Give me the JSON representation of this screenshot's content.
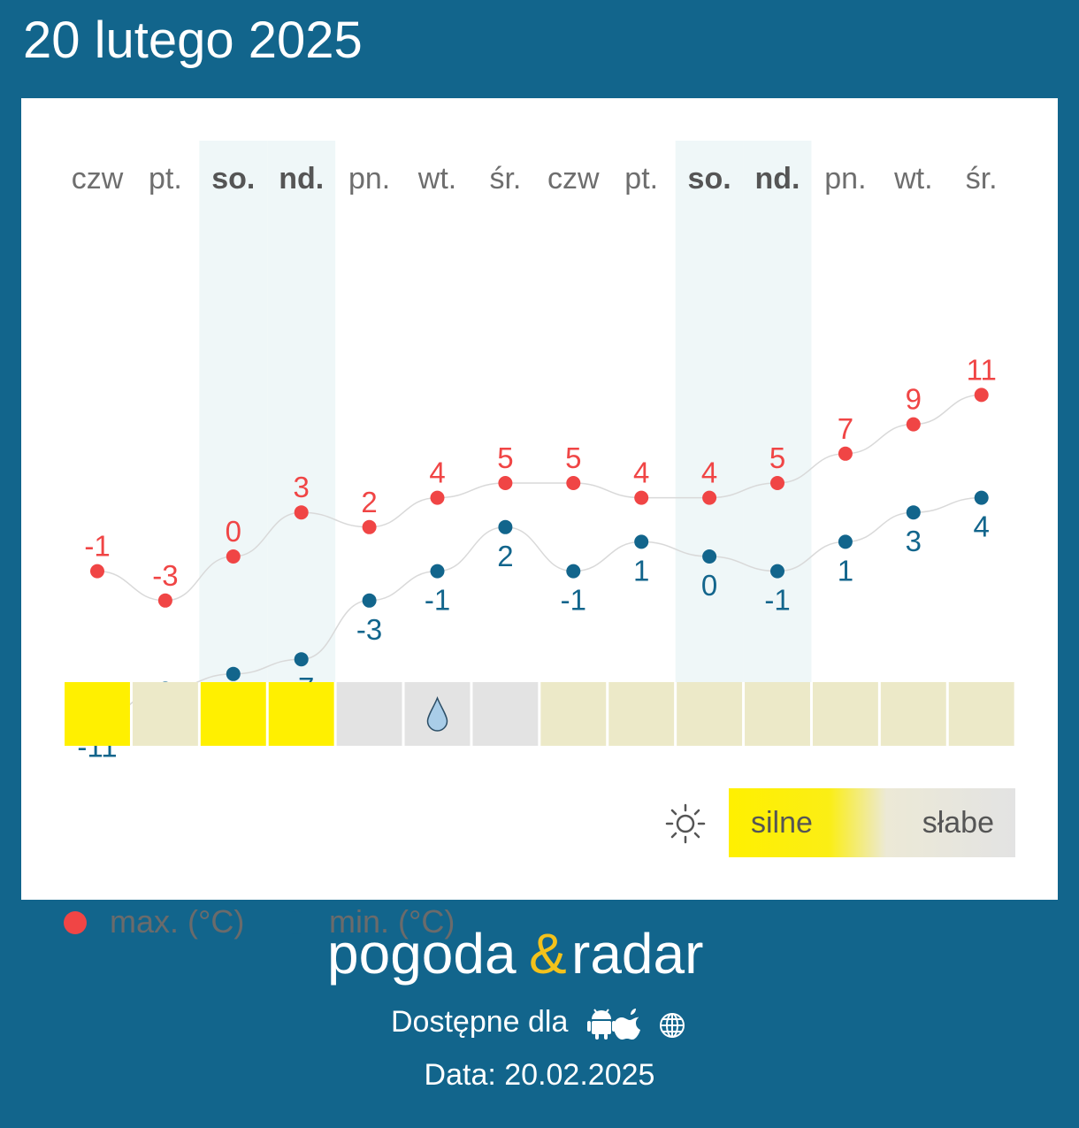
{
  "header": {
    "title": "20 lutego 2025"
  },
  "chart_data": {
    "type": "line",
    "categories": [
      "czw",
      "pt.",
      "so.",
      "nd.",
      "pn.",
      "wt.",
      "śr.",
      "czw",
      "pt.",
      "so.",
      "nd.",
      "pn.",
      "wt.",
      "śr."
    ],
    "weekend": [
      false,
      false,
      true,
      true,
      false,
      false,
      false,
      false,
      false,
      true,
      true,
      false,
      false,
      false
    ],
    "series": [
      {
        "name": "max. (°C)",
        "color": "#f04545",
        "values": [
          -1,
          -3,
          0,
          3,
          2,
          4,
          5,
          5,
          4,
          4,
          5,
          7,
          9,
          11
        ]
      },
      {
        "name": "min. (°C)",
        "color": "#12658c",
        "values": [
          -11,
          -9,
          -8,
          -7,
          -3,
          -1,
          2,
          -1,
          1,
          0,
          -1,
          1,
          3,
          4
        ]
      }
    ],
    "sun_intensity": [
      1,
      0.4,
      1,
      1,
      0,
      0,
      0,
      0.4,
      0.4,
      0.4,
      0.4,
      0.4,
      0.4,
      0.4
    ],
    "precip_icon": [
      "",
      "",
      "",
      "",
      "",
      "raindrop-icon",
      "",
      "",
      "",
      "",
      "",
      "",
      "",
      ""
    ],
    "ylim": [
      -13,
      13
    ],
    "grid": false,
    "legend": "bottom-left"
  },
  "colors": {
    "background": "#12658c",
    "weekend_band": "#eff7f8",
    "sun_strong": "#fff000",
    "sun_medium": "#ece9c8",
    "sun_none": "#e3e3e3"
  },
  "scale": {
    "strong_label": "silne",
    "weak_label": "słabe"
  },
  "brand": {
    "name_left": "pogoda",
    "amp": "&",
    "name_right": "radar"
  },
  "footer": {
    "available_label": "Dostępne dla",
    "platforms": [
      "android-icon",
      "apple-icon",
      "globe-icon"
    ],
    "date_line": "Data: 20.02.2025"
  }
}
